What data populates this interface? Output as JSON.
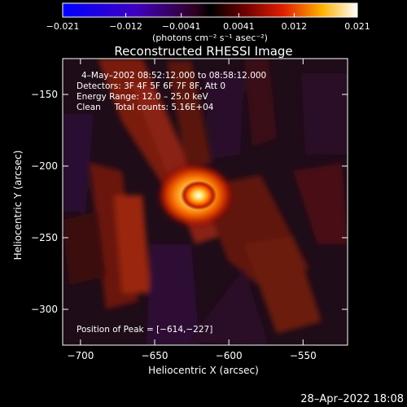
{
  "chart_data": {
    "type": "heatmap",
    "title": "Reconstructed RHESSI Image",
    "xlabel": "Heliocentric X (arcsec)",
    "ylabel": "Heliocentric Y (arcsec)",
    "xlim": [
      -712,
      -520
    ],
    "ylim": [
      -325,
      -125
    ],
    "x_ticks": [
      -700,
      -650,
      -600,
      -550
    ],
    "x_tick_labels": [
      "−700",
      "−650",
      "−600",
      "−550"
    ],
    "y_ticks": [
      -150,
      -200,
      -250,
      -300
    ],
    "y_tick_labels": [
      "−150",
      "−200",
      "−250",
      "−300"
    ],
    "colorbar": {
      "min": -0.021,
      "max": 0.021,
      "ticks": [
        -0.021,
        -0.012,
        -0.0041,
        0.0041,
        0.012,
        0.021
      ],
      "tick_labels": [
        "−0.021",
        "−0.012",
        "−0.0041",
        "0.0041",
        "0.012",
        "0.021"
      ],
      "unit_label": "(photons cm⁻² s⁻¹ asec⁻²)"
    },
    "annotations": {
      "time_range": "4–May–2002 08:52:12.000 to 08:58:12.000",
      "detectors": "Detectors: 3F 4F 5F 6F 7F 8F, Att 0",
      "energy_range": "Energy Range: 12.0 – 25.0 keV",
      "clean_counts": "Clean     Total counts: 5.16E+04",
      "peak_position": "Position of Peak = [−614,−227]"
    },
    "peak": {
      "x": -614,
      "y": -227
    },
    "footer_timestamp": "28–Apr–2022 18:08"
  }
}
